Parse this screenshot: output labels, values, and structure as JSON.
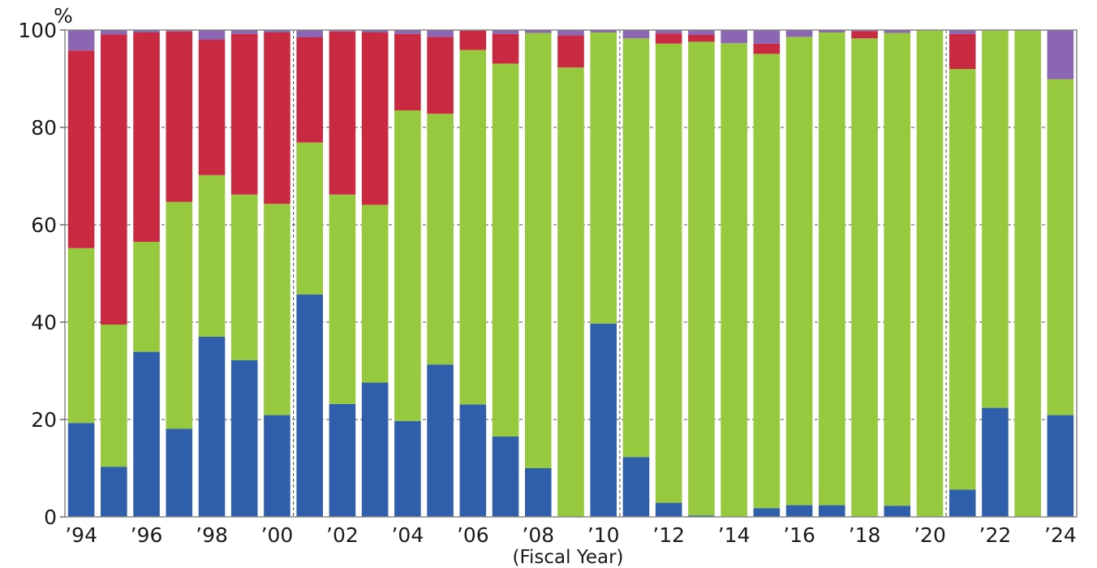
{
  "chart_data": {
    "type": "bar",
    "stacked": true,
    "y_unit": "%",
    "xlabel": "(Fiscal Year)",
    "ylabel": "",
    "ylim": [
      0,
      100
    ],
    "yticks": [
      0,
      20,
      40,
      60,
      80,
      100
    ],
    "grid": "horizontal dashed",
    "categories": [
      "1994",
      "1995",
      "1996",
      "1997",
      "1998",
      "1999",
      "2000",
      "2001",
      "2002",
      "2003",
      "2004",
      "2005",
      "2006",
      "2007",
      "2008",
      "2009",
      "2010",
      "2011",
      "2012",
      "2013",
      "2014",
      "2015",
      "2016",
      "2017",
      "2018",
      "2019",
      "2020",
      "2021",
      "2022",
      "2023",
      "2024"
    ],
    "xtick_labels": [
      "’94",
      "",
      "’96",
      "",
      "’98",
      "",
      "’00",
      "",
      "’02",
      "",
      "’04",
      "",
      "’06",
      "",
      "’08",
      "",
      "’10",
      "",
      "’12",
      "",
      "’14",
      "",
      "’16",
      "",
      "’18",
      "",
      "’20",
      "",
      "’22",
      "",
      "’24"
    ],
    "period_dividers_after": [
      "2000",
      "2010",
      "2020"
    ],
    "series": [
      {
        "color": "#2f5fab",
        "values": [
          19.3,
          10.3,
          33.9,
          18.1,
          37.0,
          32.2,
          20.9,
          45.7,
          23.2,
          27.6,
          19.7,
          31.3,
          23.1,
          16.5,
          10.0,
          0,
          39.7,
          12.3,
          2.9,
          0.3,
          0,
          1.8,
          2.4,
          2.4,
          0,
          2.3,
          0,
          5.6,
          22.4,
          0,
          20.9
        ]
      },
      {
        "color": "#96c93d",
        "values": [
          35.9,
          29.2,
          22.6,
          46.6,
          33.2,
          34.0,
          43.4,
          31.2,
          43.0,
          36.5,
          63.8,
          51.5,
          72.8,
          76.6,
          89.4,
          92.3,
          59.8,
          86.0,
          94.3,
          97.3,
          97.3,
          93.3,
          96.2,
          97.1,
          98.3,
          97.1,
          100.0,
          86.4,
          77.6,
          100.0,
          69.0
        ]
      },
      {
        "color": "#ca2a41",
        "values": [
          40.6,
          59.6,
          43.0,
          35.0,
          27.8,
          33.0,
          35.2,
          21.6,
          33.5,
          35.4,
          15.7,
          15.8,
          4.0,
          6.1,
          0,
          6.6,
          0,
          0,
          2.1,
          1.4,
          0,
          2.1,
          0,
          0,
          1.5,
          0,
          0,
          7.2,
          0,
          0,
          0
        ]
      },
      {
        "color": "#8a66b3",
        "values": [
          4.2,
          0.9,
          0.5,
          0.3,
          2.0,
          0.8,
          0.5,
          1.5,
          0.3,
          0.5,
          0.8,
          1.4,
          0.1,
          0.8,
          0.6,
          1.1,
          0.5,
          1.7,
          0.7,
          1.0,
          2.7,
          2.8,
          1.4,
          0.5,
          0.2,
          0.6,
          0,
          0.8,
          0,
          0,
          10.1
        ]
      }
    ]
  }
}
